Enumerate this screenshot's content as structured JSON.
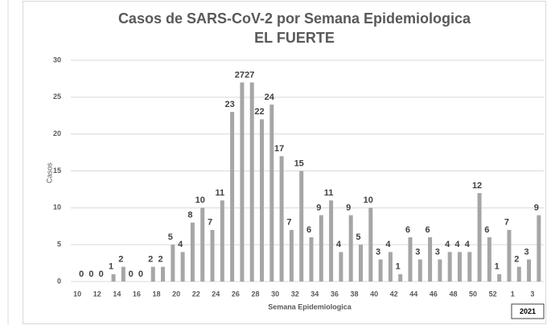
{
  "chart_data": {
    "type": "bar",
    "title": "Casos de SARS-CoV-2 por Semana Epidemiologica",
    "subtitle": "EL FUERTE",
    "x_label": "Semana Epidemiologica",
    "y_label": "Casos",
    "annotation": "2021",
    "categories": [
      "10",
      null,
      "12",
      null,
      "14",
      null,
      "16",
      null,
      "18",
      null,
      "20",
      null,
      "22",
      null,
      "24",
      null,
      "26",
      null,
      "28",
      null,
      "30",
      null,
      "32",
      null,
      "34",
      null,
      "36",
      null,
      "38",
      null,
      "40",
      null,
      "42",
      null,
      "44",
      null,
      "46",
      null,
      "48",
      null,
      "50",
      null,
      "52",
      null,
      "1",
      null,
      "3"
    ],
    "values": [
      0,
      0,
      0,
      1,
      2,
      0,
      0,
      2,
      2,
      5,
      4,
      8,
      10,
      7,
      11,
      23,
      27,
      27,
      22,
      24,
      17,
      7,
      15,
      6,
      9,
      11,
      4,
      9,
      5,
      10,
      3,
      4,
      1,
      6,
      3,
      6,
      3,
      4,
      4,
      4,
      12,
      6,
      1,
      7,
      2,
      3,
      9
    ],
    "color": "#a6a6a6",
    "ylim": [
      0,
      30
    ],
    "yticks": [
      0,
      5,
      10,
      15,
      20,
      25,
      30
    ],
    "grid": true
  }
}
